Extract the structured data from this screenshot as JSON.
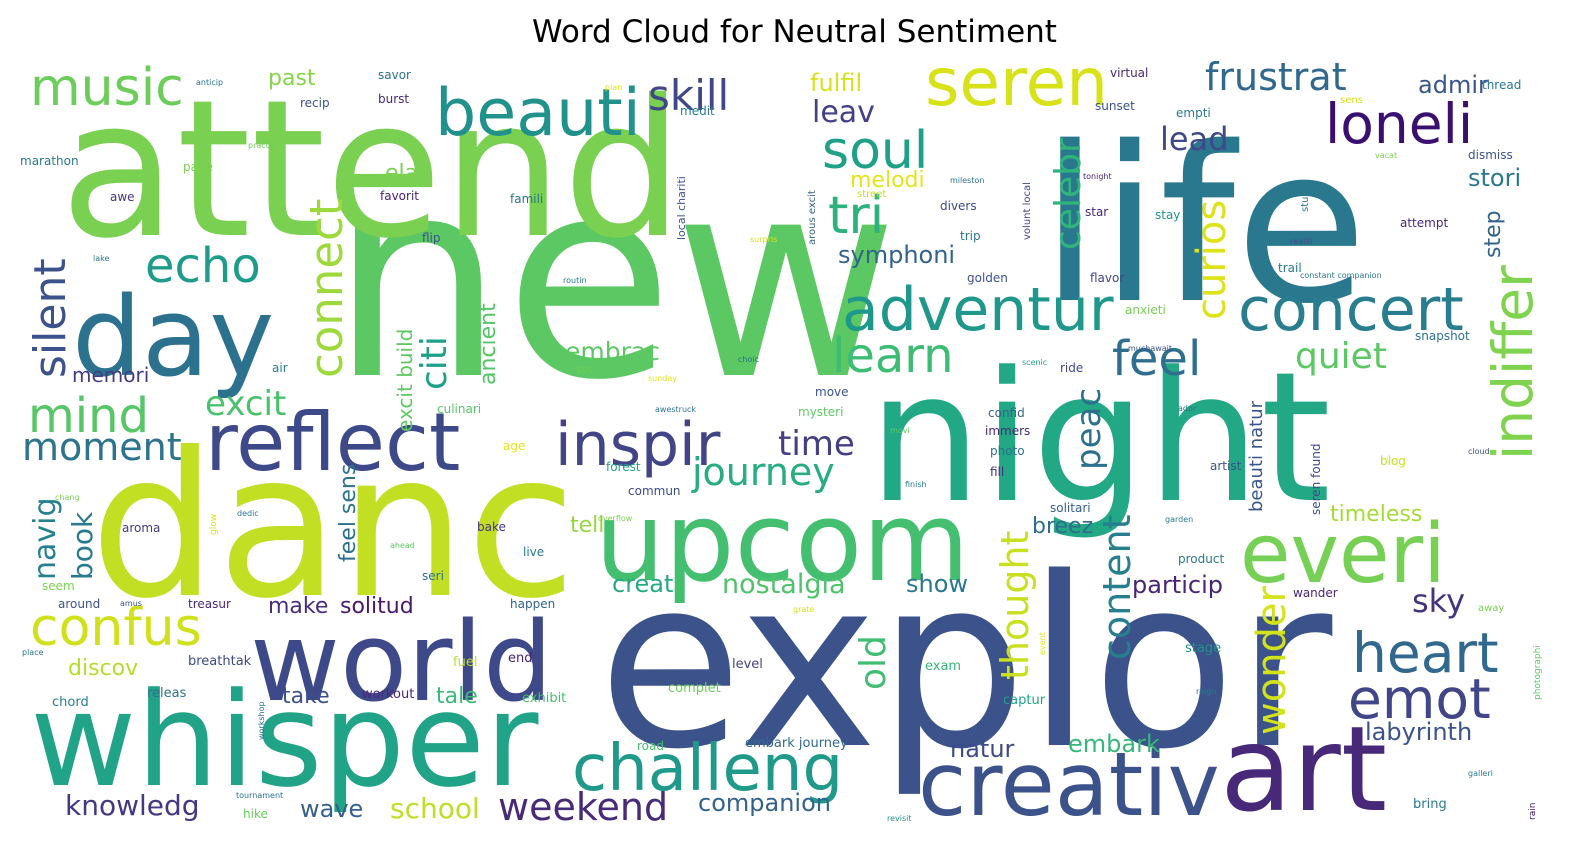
{
  "title": "Word Cloud for Neutral Sentiment",
  "chart_data": {
    "type": "wordcloud",
    "title": "Word Cloud for Neutral Sentiment",
    "colormap": "viridis",
    "background": "#ffffff",
    "words": [
      {
        "text": "new",
        "weight": 100,
        "color": "#5cc863"
      },
      {
        "text": "explor",
        "weight": 95,
        "color": "#3b528b"
      },
      {
        "text": "life",
        "weight": 85,
        "color": "#2a788e"
      },
      {
        "text": "attend",
        "weight": 83,
        "color": "#7ad151"
      },
      {
        "text": "night",
        "weight": 80,
        "color": "#22a884"
      },
      {
        "text": "danc",
        "weight": 80,
        "color": "#c2df23"
      },
      {
        "text": "whisper",
        "weight": 58,
        "color": "#20a386"
      },
      {
        "text": "world",
        "weight": 50,
        "color": "#3e4989"
      },
      {
        "text": "upcom",
        "weight": 48,
        "color": "#44bf70"
      },
      {
        "text": "art",
        "weight": 48,
        "color": "#482878"
      },
      {
        "text": "creativ",
        "weight": 40,
        "color": "#3b528b"
      },
      {
        "text": "day",
        "weight": 44,
        "color": "#2c728e"
      },
      {
        "text": "reflect",
        "weight": 33,
        "color": "#3e4989"
      },
      {
        "text": "everi",
        "weight": 36,
        "color": "#75d054"
      },
      {
        "text": "beauti",
        "weight": 28,
        "color": "#21918c"
      },
      {
        "text": "seren",
        "weight": 28,
        "color": "#d8e219"
      },
      {
        "text": "challeng",
        "weight": 28,
        "color": "#1f9a8a"
      },
      {
        "text": "inspir",
        "weight": 27,
        "color": "#414487"
      },
      {
        "text": "adventur",
        "weight": 25,
        "color": "#1f988b"
      },
      {
        "text": "concert",
        "weight": 25,
        "color": "#287d8e"
      },
      {
        "text": "loneli",
        "weight": 23,
        "color": "#3b0f70"
      },
      {
        "text": "heart",
        "weight": 24,
        "color": "#31688e"
      },
      {
        "text": "emot",
        "weight": 24,
        "color": "#404688"
      },
      {
        "text": "soul",
        "weight": 22,
        "color": "#1fa187"
      },
      {
        "text": "confus",
        "weight": 22,
        "color": "#d0e11c"
      },
      {
        "text": "music",
        "weight": 22,
        "color": "#6ccd5a"
      },
      {
        "text": "indiffer",
        "weight": 22,
        "color": "#7fd34e"
      },
      {
        "text": "tri",
        "weight": 21,
        "color": "#2db27d"
      },
      {
        "text": "learn",
        "weight": 20,
        "color": "#3dbc74"
      },
      {
        "text": "echo",
        "weight": 20,
        "color": "#1e9c89"
      },
      {
        "text": "mind",
        "weight": 20,
        "color": "#56c667"
      },
      {
        "text": "connect",
        "weight": 19,
        "color": "#9dd93b"
      },
      {
        "text": "feel",
        "weight": 19,
        "color": "#2e6e8e"
      },
      {
        "text": "silent",
        "weight": 18,
        "color": "#3b528b"
      },
      {
        "text": "skill",
        "weight": 17,
        "color": "#3f4788"
      },
      {
        "text": "frustrat",
        "weight": 16,
        "color": "#31688e"
      },
      {
        "text": "curios",
        "weight": 16,
        "color": "#dde318"
      },
      {
        "text": "journey",
        "weight": 15,
        "color": "#27ad81"
      },
      {
        "text": "moment",
        "weight": 15,
        "color": "#2c738e"
      },
      {
        "text": "weekend",
        "weight": 15,
        "color": "#472a7a"
      },
      {
        "text": "wonder",
        "weight": 15,
        "color": "#d2e21b"
      },
      {
        "text": "thought",
        "weight": 15,
        "color": "#c8e020"
      },
      {
        "text": "content",
        "weight": 15,
        "color": "#277f8e"
      },
      {
        "text": "citi",
        "weight": 14,
        "color": "#1fa088"
      },
      {
        "text": "celebr",
        "weight": 14,
        "color": "#2fb47c"
      },
      {
        "text": "time",
        "weight": 14,
        "color": "#433e85"
      },
      {
        "text": "quiet",
        "weight": 14,
        "color": "#5ac864"
      },
      {
        "text": "peac",
        "weight": 14,
        "color": "#2d708e"
      },
      {
        "text": "old",
        "weight": 14,
        "color": "#40bd72"
      },
      {
        "text": "excit",
        "weight": 14,
        "color": "#4ac16d"
      },
      {
        "text": "lead",
        "weight": 13,
        "color": "#3e4989"
      },
      {
        "text": "leav",
        "weight": 13,
        "color": "#424086"
      },
      {
        "text": "sky",
        "weight": 13,
        "color": "#46337f"
      },
      {
        "text": "navig",
        "weight": 13,
        "color": "#26818e"
      },
      {
        "text": "book",
        "weight": 12,
        "color": "#297a8e"
      },
      {
        "text": "embrac",
        "weight": 12,
        "color": "#5cc863"
      },
      {
        "text": "nostalgia",
        "weight": 12,
        "color": "#4ec36b"
      },
      {
        "text": "knowledg",
        "weight": 12,
        "color": "#453781"
      },
      {
        "text": "school",
        "weight": 12,
        "color": "#bddf26"
      },
      {
        "text": "companion",
        "weight": 11,
        "color": "#33638d"
      },
      {
        "text": "labyrinth",
        "weight": 11,
        "color": "#3b528b"
      },
      {
        "text": "natur",
        "weight": 11,
        "color": "#3e4a89"
      },
      {
        "text": "embark",
        "weight": 11,
        "color": "#35b779"
      },
      {
        "text": "wave",
        "weight": 11,
        "color": "#355f8d"
      },
      {
        "text": "fulfil",
        "weight": 10,
        "color": "#d8e219"
      },
      {
        "text": "symphoni",
        "weight": 10,
        "color": "#33638d"
      },
      {
        "text": "melodi",
        "weight": 10,
        "color": "#e5e419"
      },
      {
        "text": "elat",
        "weight": 10,
        "color": "#7ad151"
      },
      {
        "text": "stori",
        "weight": 10,
        "color": "#2a788e"
      },
      {
        "text": "step",
        "weight": 10,
        "color": "#33638d"
      },
      {
        "text": "admir",
        "weight": 10,
        "color": "#39568c"
      },
      {
        "text": "past",
        "weight": 10,
        "color": "#86d549"
      },
      {
        "text": "memori",
        "weight": 9,
        "color": "#443983"
      },
      {
        "text": "tell",
        "weight": 10,
        "color": "#95d840"
      },
      {
        "text": "creat",
        "weight": 10,
        "color": "#25ab82"
      },
      {
        "text": "show",
        "weight": 10,
        "color": "#2a788e"
      },
      {
        "text": "particip",
        "weight": 10,
        "color": "#482475"
      },
      {
        "text": "breez",
        "weight": 10,
        "color": "#2f6c8e"
      },
      {
        "text": "timeless",
        "weight": 10,
        "color": "#a5db36"
      },
      {
        "text": "make",
        "weight": 10,
        "color": "#472d7b"
      },
      {
        "text": "solitud",
        "weight": 10,
        "color": "#48186a"
      },
      {
        "text": "discov",
        "weight": 10,
        "color": "#b5de2b"
      },
      {
        "text": "take",
        "weight": 10,
        "color": "#3c4f8a"
      },
      {
        "text": "tale",
        "weight": 10,
        "color": "#3aba76"
      },
      {
        "text": "ancient",
        "weight": 10,
        "color": "#54c568"
      },
      {
        "text": "excit build",
        "weight": 10,
        "color": "#5ec962"
      },
      {
        "text": "feel sens",
        "weight": 10,
        "color": "#2d718e"
      },
      {
        "text": "beauti natur",
        "weight": 9,
        "color": "#39568c"
      },
      {
        "text": "seren found",
        "weight": 6,
        "color": "#3e4a89"
      },
      {
        "text": "breathtak",
        "weight": 6,
        "color": "#3e4989"
      },
      {
        "text": "fuel",
        "weight": 6,
        "color": "#bddf26"
      },
      {
        "text": "end",
        "weight": 6,
        "color": "#482173"
      },
      {
        "text": "exhibit",
        "weight": 6,
        "color": "#44bf70"
      },
      {
        "text": "complet",
        "weight": 6,
        "color": "#6ccd5a"
      },
      {
        "text": "level",
        "weight": 6,
        "color": "#404688"
      },
      {
        "text": "exam",
        "weight": 6,
        "color": "#35b779"
      },
      {
        "text": "stage",
        "weight": 6,
        "color": "#21918c"
      },
      {
        "text": "releas",
        "weight": 6,
        "color": "#2c728e"
      },
      {
        "text": "workout",
        "weight": 6,
        "color": "#482878"
      },
      {
        "text": "chord",
        "weight": 6,
        "color": "#277f8e"
      },
      {
        "text": "captur",
        "weight": 6,
        "color": "#20a386"
      },
      {
        "text": "embark journey",
        "weight": 6,
        "color": "#31688e"
      },
      {
        "text": "road",
        "weight": 5,
        "color": "#44bf70"
      },
      {
        "text": "hike",
        "weight": 5,
        "color": "#6ccd5a"
      },
      {
        "text": "bring",
        "weight": 5,
        "color": "#2a788e"
      },
      {
        "text": "happen",
        "weight": 5,
        "color": "#33638d"
      },
      {
        "text": "around",
        "weight": 5,
        "color": "#3b528b"
      },
      {
        "text": "treasur",
        "weight": 5,
        "color": "#482878"
      },
      {
        "text": "seem",
        "weight": 5,
        "color": "#7ad151"
      },
      {
        "text": "seri",
        "weight": 5,
        "color": "#2c728e"
      },
      {
        "text": "live",
        "weight": 5,
        "color": "#2a788e"
      },
      {
        "text": "aroma",
        "weight": 5,
        "color": "#443983"
      },
      {
        "text": "bake",
        "weight": 5,
        "color": "#46337f"
      },
      {
        "text": "commun",
        "weight": 5,
        "color": "#3e4989"
      },
      {
        "text": "forest",
        "weight": 5,
        "color": "#20a386"
      },
      {
        "text": "age",
        "weight": 5,
        "color": "#e5e419"
      },
      {
        "text": "culinari",
        "weight": 5,
        "color": "#56c667"
      },
      {
        "text": "move",
        "weight": 5,
        "color": "#3b528b"
      },
      {
        "text": "mysteri",
        "weight": 5,
        "color": "#5ec962"
      },
      {
        "text": "confid",
        "weight": 5,
        "color": "#33638d"
      },
      {
        "text": "immers",
        "weight": 5,
        "color": "#482878"
      },
      {
        "text": "photo",
        "weight": 5,
        "color": "#2c728e"
      },
      {
        "text": "fill",
        "weight": 5,
        "color": "#472d7b"
      },
      {
        "text": "artist",
        "weight": 5,
        "color": "#3b528b"
      },
      {
        "text": "blog",
        "weight": 5,
        "color": "#c8e020"
      },
      {
        "text": "solitari",
        "weight": 5,
        "color": "#355f8d"
      },
      {
        "text": "product",
        "weight": 5,
        "color": "#2a788e"
      },
      {
        "text": "wander",
        "weight": 5,
        "color": "#482475"
      },
      {
        "text": "ride",
        "weight": 5,
        "color": "#3e4989"
      },
      {
        "text": "air",
        "weight": 5,
        "color": "#2a788e"
      },
      {
        "text": "set",
        "weight": 5,
        "color": "#6ccd5a"
      },
      {
        "text": "anxieti",
        "weight": 5,
        "color": "#75d054"
      },
      {
        "text": "flavor",
        "weight": 5,
        "color": "#404688"
      },
      {
        "text": "golden",
        "weight": 5,
        "color": "#3b528b"
      },
      {
        "text": "trail",
        "weight": 5,
        "color": "#287d8e"
      },
      {
        "text": "trip",
        "weight": 5,
        "color": "#2a788e"
      },
      {
        "text": "divers",
        "weight": 5,
        "color": "#3e4989"
      },
      {
        "text": "star",
        "weight": 5,
        "color": "#482878"
      },
      {
        "text": "stay",
        "weight": 5,
        "color": "#21918c"
      },
      {
        "text": "attempt",
        "weight": 5,
        "color": "#482878"
      },
      {
        "text": "snapshot",
        "weight": 5,
        "color": "#2c728e"
      },
      {
        "text": "flip",
        "weight": 5,
        "color": "#3b528b"
      },
      {
        "text": "favorit",
        "weight": 5,
        "color": "#482475"
      },
      {
        "text": "famili",
        "weight": 5,
        "color": "#2c728e"
      },
      {
        "text": "awe",
        "weight": 5,
        "color": "#46337f"
      },
      {
        "text": "page",
        "weight": 5,
        "color": "#7ad151"
      },
      {
        "text": "marathon",
        "weight": 5,
        "color": "#2a788e"
      },
      {
        "text": "recip",
        "weight": 5,
        "color": "#3b528b"
      },
      {
        "text": "burst",
        "weight": 5,
        "color": "#482878"
      },
      {
        "text": "savor",
        "weight": 5,
        "color": "#2c728e"
      },
      {
        "text": "medit",
        "weight": 5,
        "color": "#287d8e"
      },
      {
        "text": "sunset",
        "weight": 5,
        "color": "#3b528b"
      },
      {
        "text": "empti",
        "weight": 5,
        "color": "#2a788e"
      },
      {
        "text": "virtual",
        "weight": 5,
        "color": "#482878"
      },
      {
        "text": "thread",
        "weight": 5,
        "color": "#2a788e"
      },
      {
        "text": "dismiss",
        "weight": 5,
        "color": "#3b528b"
      },
      {
        "text": "volunt local",
        "weight": 5,
        "color": "#3e4989"
      },
      {
        "text": "local chariti",
        "weight": 5,
        "color": "#3b528b"
      },
      {
        "text": "arous excit",
        "weight": 5,
        "color": "#33638d"
      },
      {
        "text": "studi",
        "weight": 5,
        "color": "#2a788e"
      },
      {
        "text": "photographi",
        "weight": 4,
        "color": "#5ec962"
      },
      {
        "text": "rain",
        "weight": 4,
        "color": "#3b0f70"
      },
      {
        "text": "street",
        "weight": 4,
        "color": "#c8e020"
      },
      {
        "text": "sens",
        "weight": 4,
        "color": "#d8e219"
      },
      {
        "text": "plan",
        "weight": 3,
        "color": "#e5e419"
      },
      {
        "text": "anticip",
        "weight": 3,
        "color": "#2c728e"
      },
      {
        "text": "practic",
        "weight": 3,
        "color": "#6ccd5a"
      },
      {
        "text": "mileston",
        "weight": 3,
        "color": "#2c728e"
      },
      {
        "text": "tonight",
        "weight": 3,
        "color": "#482878"
      },
      {
        "text": "vacat",
        "weight": 3,
        "color": "#7ad151"
      },
      {
        "text": "realiti",
        "weight": 3,
        "color": "#3b528b"
      },
      {
        "text": "constant companion",
        "weight": 3,
        "color": "#2a788e"
      },
      {
        "text": "surpris",
        "weight": 3,
        "color": "#d8e219"
      },
      {
        "text": "lake",
        "weight": 3,
        "color": "#2a788e"
      },
      {
        "text": "routin",
        "weight": 3,
        "color": "#2a788e"
      },
      {
        "text": "muchawait",
        "weight": 3,
        "color": "#3b528b"
      },
      {
        "text": "scenic",
        "weight": 3,
        "color": "#20a386"
      },
      {
        "text": "choic",
        "weight": 3,
        "color": "#2c728e"
      },
      {
        "text": "sunday",
        "weight": 3,
        "color": "#e5e419"
      },
      {
        "text": "awestruck",
        "weight": 3,
        "color": "#2c728e"
      },
      {
        "text": "movi",
        "weight": 3,
        "color": "#5ec962"
      },
      {
        "text": "ador",
        "weight": 3,
        "color": "#2a788e"
      },
      {
        "text": "cloud",
        "weight": 3,
        "color": "#3b528b"
      },
      {
        "text": "finish",
        "weight": 3,
        "color": "#2a788e"
      },
      {
        "text": "chang",
        "weight": 3,
        "color": "#7ad151"
      },
      {
        "text": "glow",
        "weight": 3,
        "color": "#d8e219"
      },
      {
        "text": "dedic",
        "weight": 3,
        "color": "#2c728e"
      },
      {
        "text": "overflow",
        "weight": 3,
        "color": "#7ad151"
      },
      {
        "text": "ahead",
        "weight": 3,
        "color": "#5ec962"
      },
      {
        "text": "garden",
        "weight": 3,
        "color": "#2a788e"
      },
      {
        "text": "amus",
        "weight": 3,
        "color": "#3b528b"
      },
      {
        "text": "grate",
        "weight": 3,
        "color": "#d8e219"
      },
      {
        "text": "place",
        "weight": 3,
        "color": "#2c728e"
      },
      {
        "text": "event",
        "weight": 3,
        "color": "#e5e419"
      },
      {
        "text": "reign",
        "weight": 3,
        "color": "#2a788e"
      },
      {
        "text": "away",
        "weight": 3,
        "color": "#7ad151"
      },
      {
        "text": "workshop",
        "weight": 3,
        "color": "#2c728e"
      },
      {
        "text": "tournament",
        "weight": 3,
        "color": "#2c728e"
      },
      {
        "text": "revisit",
        "weight": 3,
        "color": "#21918c"
      },
      {
        "text": "galleri",
        "weight": 3,
        "color": "#2a788e"
      }
    ]
  }
}
